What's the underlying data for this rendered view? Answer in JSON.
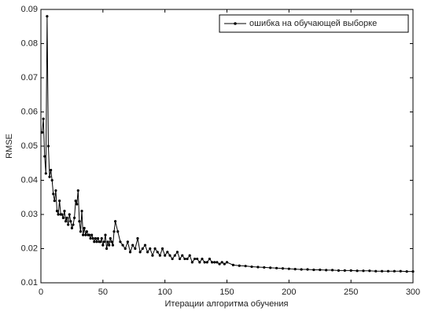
{
  "chart_data": {
    "type": "line",
    "xlabel": "Итерации алгоритма обучения",
    "ylabel": "RMSE",
    "xlim": [
      0,
      300
    ],
    "xticks": [
      0,
      50,
      100,
      150,
      200,
      250,
      300
    ],
    "ylim": [
      0.01,
      0.09
    ],
    "yticks": [
      0.01,
      0.02,
      0.03,
      0.04,
      0.05,
      0.06,
      0.07,
      0.08,
      0.09
    ],
    "legend": "upper right",
    "grid": false,
    "series": [
      {
        "name": "ошибка на обучающей выборке",
        "color": "#000000",
        "x": [
          1,
          2,
          3,
          4,
          5,
          6,
          7,
          8,
          9,
          10,
          11,
          12,
          13,
          14,
          15,
          16,
          17,
          18,
          19,
          20,
          21,
          22,
          23,
          24,
          25,
          26,
          27,
          28,
          29,
          30,
          31,
          32,
          33,
          34,
          35,
          36,
          37,
          38,
          39,
          40,
          41,
          42,
          43,
          44,
          45,
          46,
          47,
          48,
          49,
          50,
          51,
          52,
          53,
          54,
          55,
          56,
          57,
          58,
          59,
          60,
          62,
          64,
          66,
          68,
          70,
          72,
          74,
          76,
          78,
          80,
          82,
          84,
          86,
          88,
          90,
          92,
          94,
          96,
          98,
          100,
          102,
          104,
          106,
          108,
          110,
          112,
          114,
          116,
          118,
          120,
          122,
          124,
          126,
          128,
          130,
          132,
          134,
          136,
          138,
          140,
          142,
          144,
          146,
          148,
          150,
          155,
          160,
          165,
          170,
          175,
          180,
          185,
          190,
          195,
          200,
          205,
          210,
          215,
          220,
          225,
          230,
          235,
          240,
          245,
          250,
          255,
          260,
          265,
          270,
          275,
          280,
          285,
          290,
          295,
          300
        ],
        "values": [
          0.054,
          0.058,
          0.047,
          0.042,
          0.088,
          0.05,
          0.041,
          0.043,
          0.04,
          0.036,
          0.034,
          0.037,
          0.031,
          0.03,
          0.034,
          0.03,
          0.03,
          0.029,
          0.031,
          0.028,
          0.029,
          0.027,
          0.03,
          0.028,
          0.026,
          0.027,
          0.029,
          0.034,
          0.033,
          0.037,
          0.028,
          0.025,
          0.031,
          0.024,
          0.026,
          0.024,
          0.025,
          0.024,
          0.024,
          0.023,
          0.024,
          0.023,
          0.022,
          0.023,
          0.022,
          0.023,
          0.022,
          0.022,
          0.023,
          0.021,
          0.022,
          0.024,
          0.02,
          0.022,
          0.021,
          0.023,
          0.022,
          0.021,
          0.025,
          0.028,
          0.025,
          0.022,
          0.021,
          0.02,
          0.022,
          0.019,
          0.021,
          0.02,
          0.023,
          0.019,
          0.02,
          0.021,
          0.019,
          0.02,
          0.018,
          0.02,
          0.019,
          0.018,
          0.02,
          0.018,
          0.019,
          0.018,
          0.017,
          0.018,
          0.019,
          0.017,
          0.018,
          0.017,
          0.017,
          0.018,
          0.016,
          0.017,
          0.017,
          0.016,
          0.017,
          0.016,
          0.016,
          0.017,
          0.016,
          0.016,
          0.016,
          0.0155,
          0.016,
          0.0155,
          0.016,
          0.0152,
          0.015,
          0.0149,
          0.0147,
          0.0146,
          0.0145,
          0.0144,
          0.0143,
          0.0142,
          0.0141,
          0.014,
          0.0139,
          0.0139,
          0.0138,
          0.0138,
          0.0137,
          0.0137,
          0.0136,
          0.0136,
          0.0136,
          0.0135,
          0.0135,
          0.0135,
          0.0134,
          0.0134,
          0.0134,
          0.0134,
          0.0134,
          0.0133,
          0.0133
        ]
      }
    ]
  }
}
